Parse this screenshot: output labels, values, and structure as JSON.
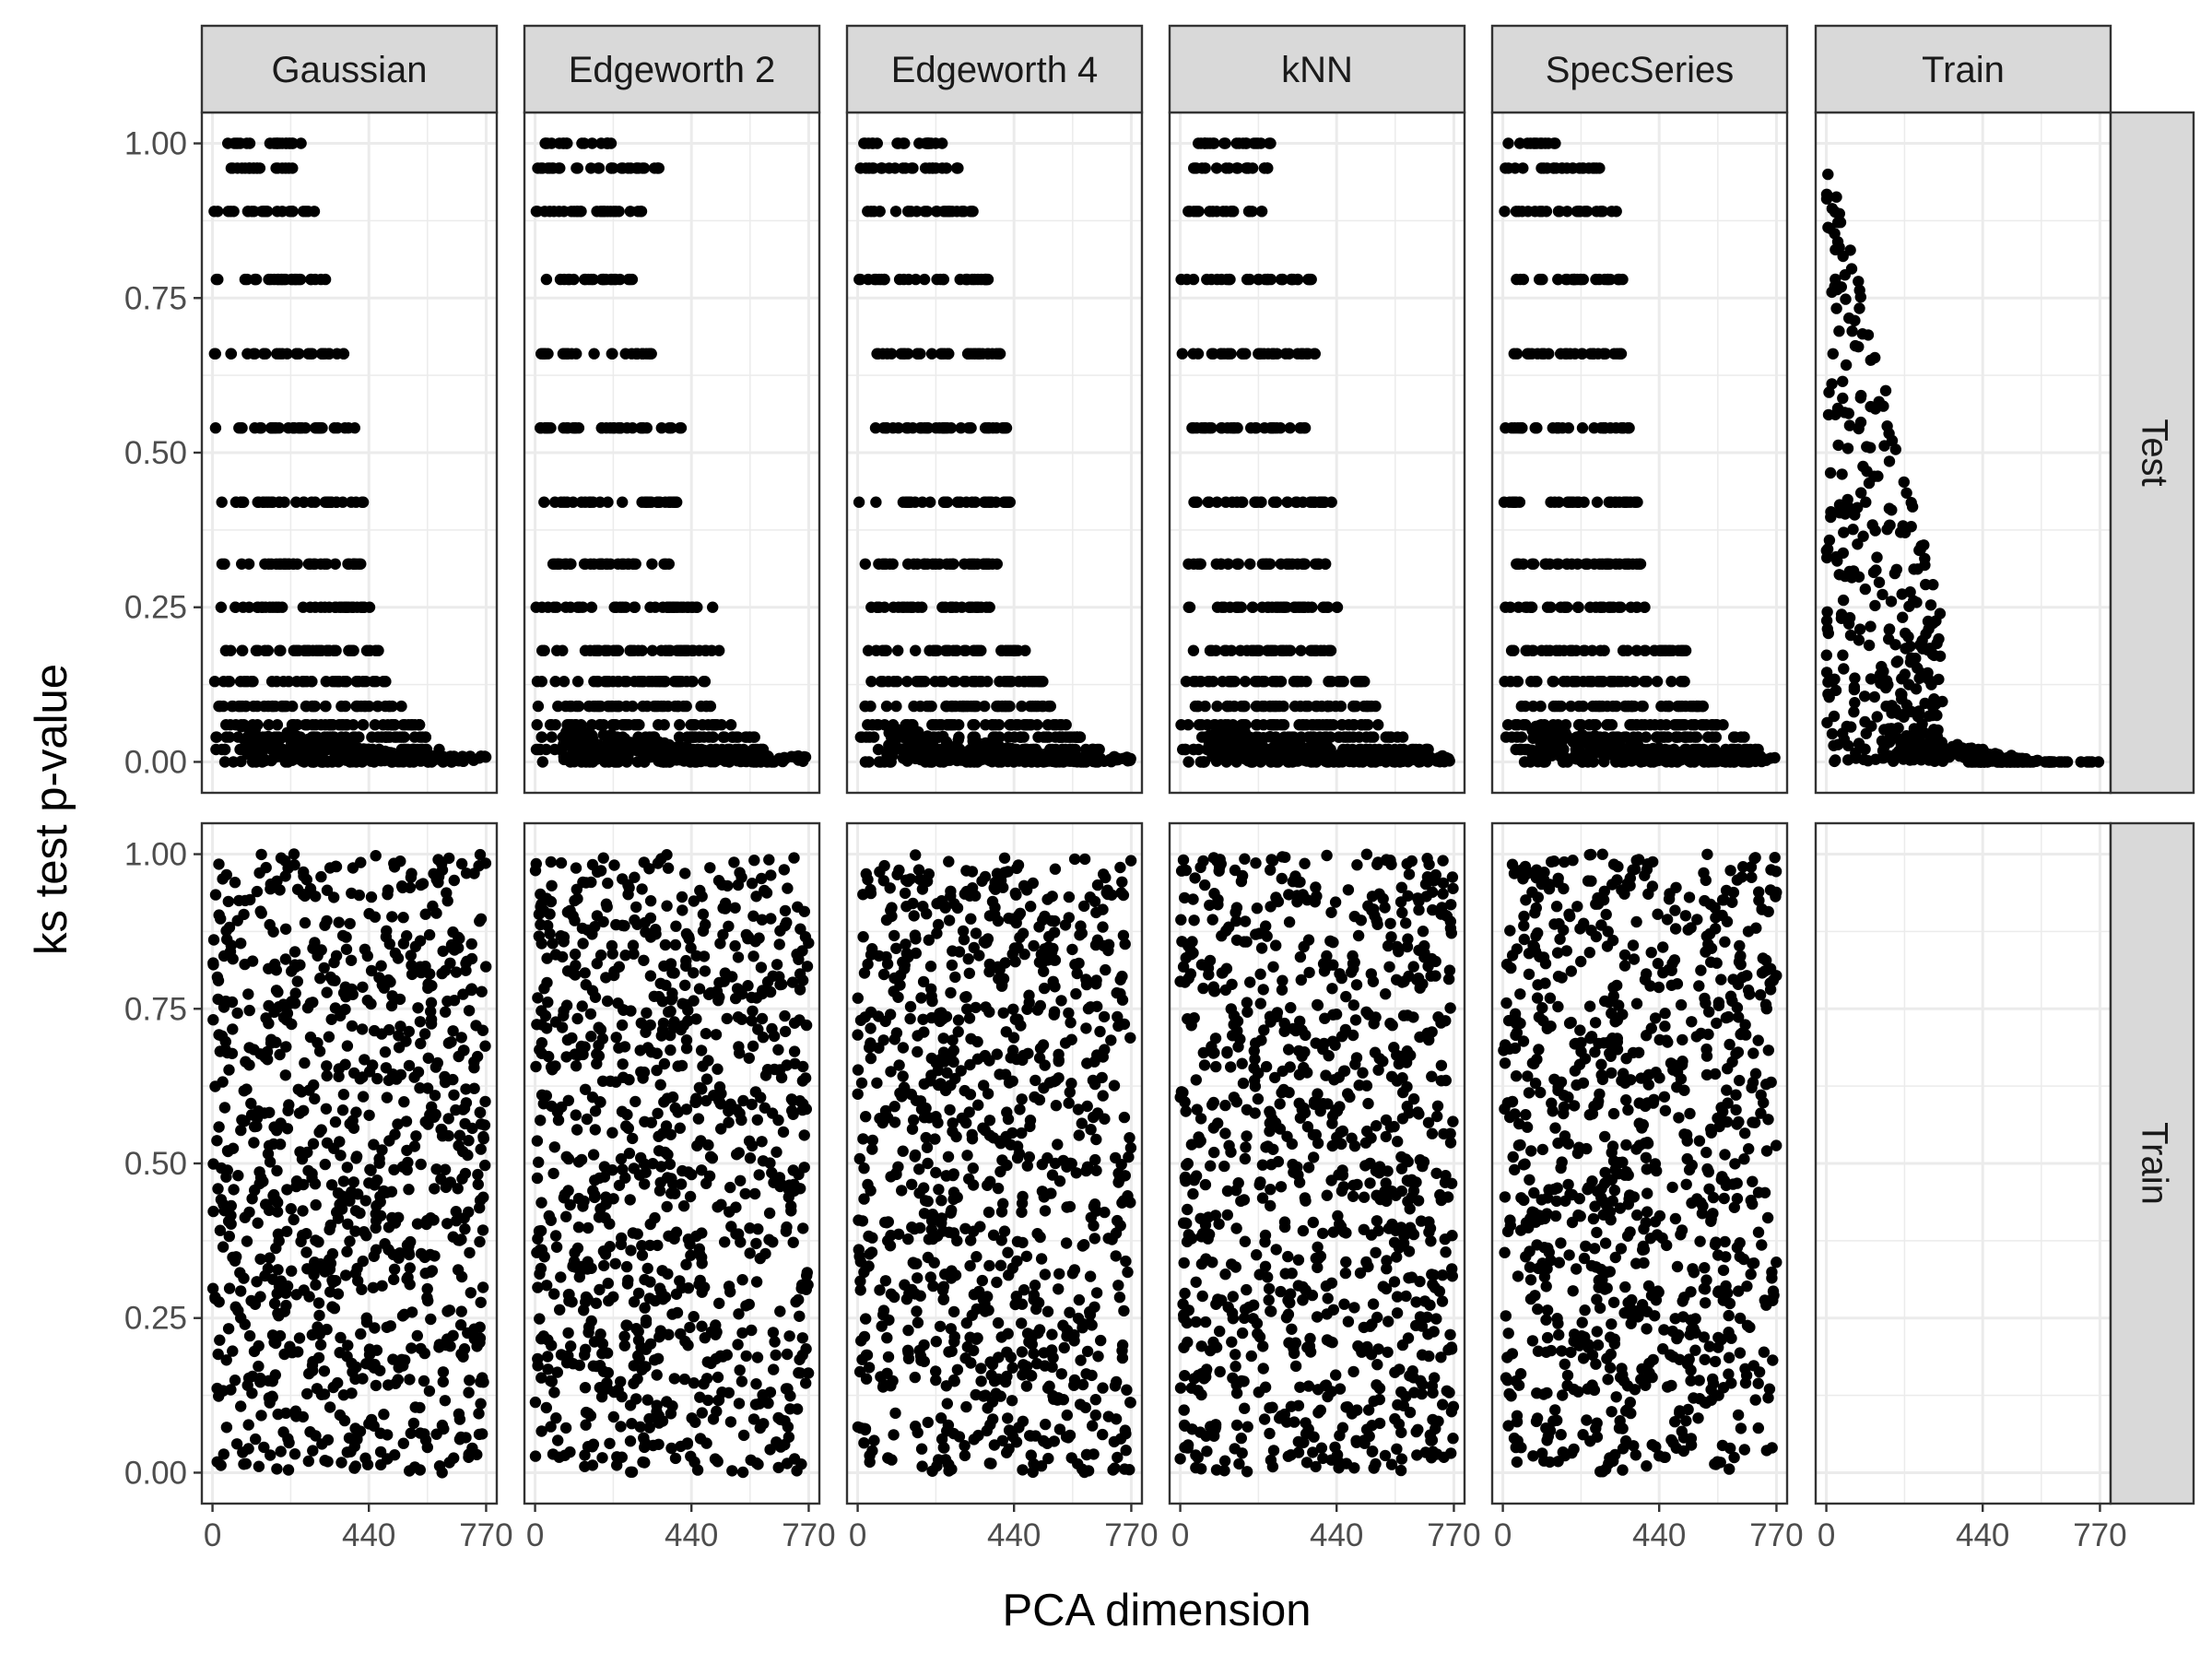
{
  "chart_data": {
    "type": "scatter",
    "layout": "facet_grid",
    "xlabel": "PCA dimension",
    "ylabel": "ks test p-value",
    "column_facets": [
      "Gaussian",
      "Edgeworth 2",
      "Edgeworth 4",
      "kNN",
      "SpecSeries",
      "Train"
    ],
    "row_facets": [
      "Test",
      "Train"
    ],
    "xlim": [
      -30,
      800
    ],
    "ylim": [
      -0.05,
      1.05
    ],
    "x_ticks": [
      0,
      440,
      770
    ],
    "x_tick_labels": [
      "0",
      "440",
      "770"
    ],
    "y_ticks": [
      0,
      0.25,
      0.5,
      0.75,
      1.0
    ],
    "y_tick_labels": [
      "0.00",
      "0.25",
      "0.50",
      "0.75",
      "1.00"
    ],
    "grid": true,
    "theme": "bw",
    "point_color": "#000000",
    "strip_fill": "#d9d9d9",
    "panels": [
      {
        "row": "Test",
        "col": "Gaussian",
        "description": "discrete p-value levels near 1.00, 0.96, 0.89, 0.78, 0.66, 0.54, 0.42, 0.32, 0.25, 0.18, 0.13, 0.09 for low dimensions (0 to ~450), decaying toward 0 by ~550 and staying at 0 to 770",
        "x_range": [
          0,
          770
        ],
        "levels": [
          1.0,
          0.96,
          0.89,
          0.78,
          0.66,
          0.54,
          0.42,
          0.32,
          0.25,
          0.18,
          0.13,
          0.09,
          0.06,
          0.04,
          0.02,
          0.0
        ],
        "level_x_max": [
          250,
          230,
          300,
          330,
          370,
          410,
          430,
          420,
          460,
          470,
          490,
          570,
          600,
          620,
          650,
          770
        ]
      },
      {
        "row": "Test",
        "col": "Edgeworth 2",
        "description": "same discrete level structure, decaying to 0 by ~600",
        "x_range": [
          0,
          770
        ],
        "levels": [
          1.0,
          0.96,
          0.89,
          0.78,
          0.66,
          0.54,
          0.42,
          0.32,
          0.25,
          0.18,
          0.13,
          0.09,
          0.06,
          0.04,
          0.02,
          0.0
        ],
        "level_x_max": [
          220,
          360,
          320,
          280,
          350,
          430,
          400,
          380,
          500,
          520,
          480,
          500,
          560,
          620,
          660,
          770
        ]
      },
      {
        "row": "Test",
        "col": "Edgeworth 4",
        "description": "same discrete level structure, decaying to 0 by ~600",
        "x_range": [
          0,
          770
        ],
        "levels": [
          1.0,
          0.96,
          0.89,
          0.78,
          0.66,
          0.54,
          0.42,
          0.32,
          0.25,
          0.18,
          0.13,
          0.09,
          0.06,
          0.04,
          0.02,
          0.0
        ],
        "level_x_max": [
          240,
          290,
          330,
          370,
          410,
          420,
          430,
          400,
          380,
          480,
          530,
          560,
          590,
          640,
          680,
          770
        ]
      },
      {
        "row": "Test",
        "col": "kNN",
        "description": "same discrete level structure, decaying to 0 by ~650",
        "x_range": [
          0,
          770
        ],
        "levels": [
          1.0,
          0.96,
          0.89,
          0.78,
          0.66,
          0.54,
          0.42,
          0.32,
          0.25,
          0.18,
          0.13,
          0.09,
          0.06,
          0.04,
          0.02,
          0.0
        ],
        "level_x_max": [
          260,
          250,
          230,
          370,
          380,
          360,
          440,
          410,
          450,
          430,
          530,
          560,
          580,
          640,
          700,
          770
        ]
      },
      {
        "row": "Test",
        "col": "SpecSeries",
        "description": "same discrete level structure, decaying to 0 by ~650",
        "x_range": [
          0,
          770
        ],
        "levels": [
          1.0,
          0.96,
          0.89,
          0.78,
          0.66,
          0.54,
          0.42,
          0.32,
          0.25,
          0.18,
          0.13,
          0.09,
          0.06,
          0.04,
          0.02,
          0.0
        ],
        "level_x_max": [
          150,
          280,
          320,
          340,
          350,
          380,
          390,
          410,
          400,
          520,
          520,
          580,
          620,
          680,
          720,
          770
        ]
      },
      {
        "row": "Test",
        "col": "Train",
        "description": "continuous p-values spread 0 to 1 for dims 0 to ~350, concentrating near 0 for higher dims, all 0 beyond ~600",
        "x_range": [
          0,
          770
        ]
      },
      {
        "row": "Train",
        "col": "Gaussian",
        "description": "p-values uniformly scattered between 0 and 1 across all dimensions 0 to 770",
        "x_range": [
          0,
          770
        ],
        "distribution": "uniform"
      },
      {
        "row": "Train",
        "col": "Edgeworth 2",
        "description": "p-values uniformly scattered between 0 and 1 across all dimensions 0 to 770",
        "x_range": [
          0,
          770
        ],
        "distribution": "uniform"
      },
      {
        "row": "Train",
        "col": "Edgeworth 4",
        "description": "p-values uniformly scattered between 0 and 1 across all dimensions 0 to 770",
        "x_range": [
          0,
          770
        ],
        "distribution": "uniform"
      },
      {
        "row": "Train",
        "col": "kNN",
        "description": "p-values uniformly scattered between 0 and 1 across all dimensions 0 to 770",
        "x_range": [
          0,
          770
        ],
        "distribution": "uniform"
      },
      {
        "row": "Train",
        "col": "SpecSeries",
        "description": "p-values uniformly scattered between 0 and 1 across all dimensions 0 to 770",
        "x_range": [
          0,
          770
        ],
        "distribution": "uniform"
      },
      {
        "row": "Train",
        "col": "Train",
        "description": "empty panel",
        "distribution": "none"
      }
    ]
  }
}
